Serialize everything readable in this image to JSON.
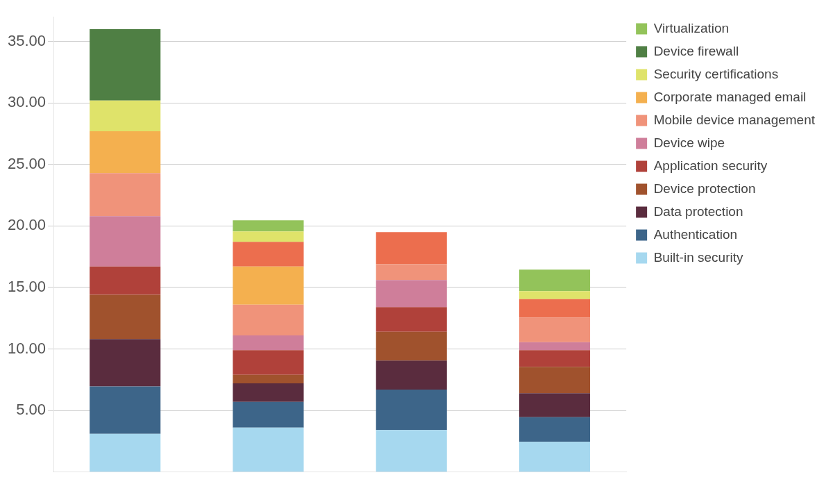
{
  "chart_data": {
    "type": "bar",
    "stacked": true,
    "categories": [
      null,
      null,
      null,
      null
    ],
    "series": [
      {
        "name": "Built-in security",
        "color": "#a6d8ef",
        "values": [
          3.1,
          3.6,
          3.4,
          2.45
        ]
      },
      {
        "name": "Authentication",
        "color": "#3d6589",
        "values": [
          3.85,
          2.1,
          3.3,
          2.0
        ]
      },
      {
        "name": "Data protection",
        "color": "#5a2c3e",
        "values": [
          3.85,
          1.5,
          2.35,
          1.95
        ]
      },
      {
        "name": "Device protection",
        "color": "#a0522d",
        "values": [
          3.6,
          0.7,
          2.35,
          2.15
        ]
      },
      {
        "name": "Application security",
        "color": "#b0413a",
        "values": [
          2.3,
          2.0,
          2.0,
          1.35
        ]
      },
      {
        "name": "Device wipe",
        "color": "#cf7e9a",
        "values": [
          4.1,
          1.2,
          2.2,
          0.65
        ]
      },
      {
        "name": "Mobile device management",
        "color": "#f0937a",
        "values": [
          3.5,
          2.5,
          1.3,
          2.0
        ]
      },
      {
        "name": "Corporate managed email",
        "color": "#f4b04f",
        "values": [
          3.4,
          3.1,
          0,
          0
        ]
      },
      {
        "color": "#ec6e4e",
        "values": [
          0,
          2.0,
          2.6,
          1.5
        ]
      },
      {
        "name": "Security certifications",
        "color": "#dfe36a",
        "values": [
          2.5,
          0.85,
          0,
          0.65
        ]
      },
      {
        "name": "Device firewall",
        "color": "#4f7f44",
        "values": [
          5.8,
          0,
          0,
          0
        ]
      },
      {
        "name": "Virtualization",
        "color": "#93c35a",
        "values": [
          0,
          0.9,
          0,
          1.75
        ]
      }
    ],
    "ylim": [
      0,
      37
    ],
    "yticks": [
      {
        "value": 5,
        "label": "5.00"
      },
      {
        "value": 10,
        "label": "10.00"
      },
      {
        "value": 15,
        "label": "15.00"
      },
      {
        "value": 20,
        "label": "20.00"
      },
      {
        "value": 25,
        "label": "25.00"
      },
      {
        "value": 30,
        "label": "30.00"
      },
      {
        "value": 35,
        "label": "35.00"
      }
    ],
    "grid": "y",
    "legend": "right"
  }
}
